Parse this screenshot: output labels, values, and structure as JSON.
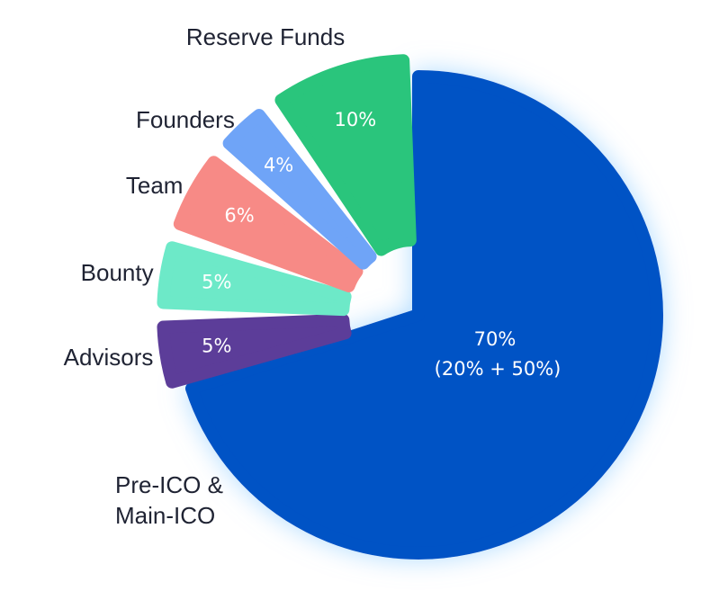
{
  "chart_data": {
    "type": "pie",
    "categories": [
      "Pre-ICO & Main-ICO",
      "Advisors",
      "Bounty",
      "Team",
      "Founders",
      "Reserve Funds"
    ],
    "values": [
      70,
      5,
      5,
      6,
      4,
      10
    ],
    "value_labels": [
      "70%",
      "5%",
      "5%",
      "6%",
      "4%",
      "10%"
    ],
    "annotation": "(20% + 50%)",
    "colors": [
      "#0652c5",
      "#5c3d99",
      "#6de9c8",
      "#f78a86",
      "#6fa4f7",
      "#2ac57c"
    ]
  }
}
